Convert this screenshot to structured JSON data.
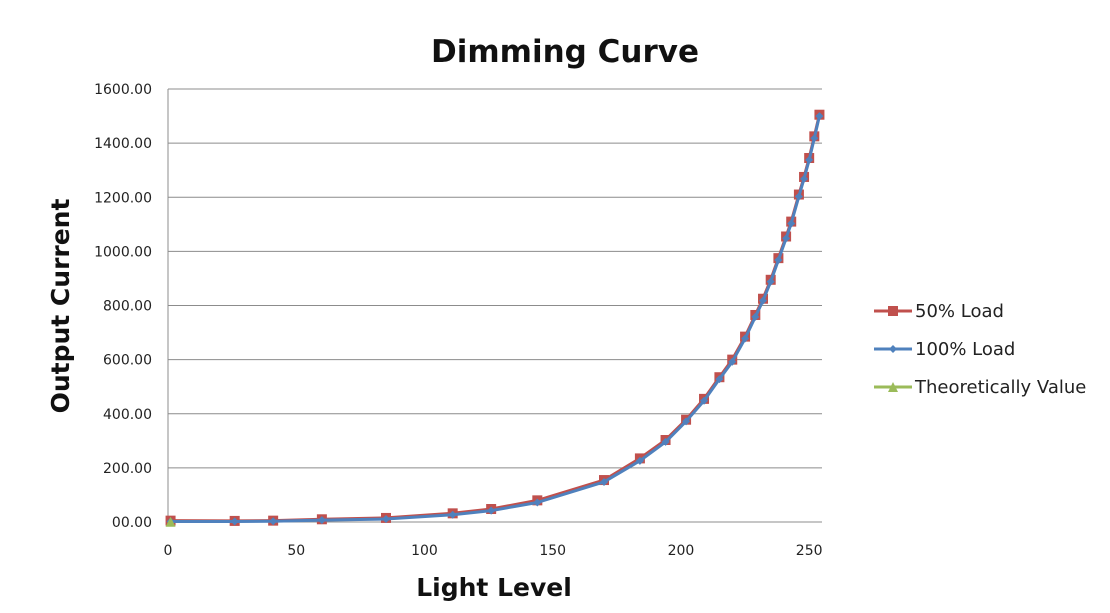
{
  "chart_data": {
    "type": "line",
    "title": "Dimming Curve",
    "xlabel": "Light Level",
    "ylabel": "Output Current",
    "xlim": [
      0,
      255
    ],
    "ylim": [
      0,
      1600
    ],
    "x_ticks": [
      "0",
      "50",
      "100",
      "150",
      "200",
      "250"
    ],
    "x_tick_values": [
      0,
      50,
      100,
      150,
      200,
      250
    ],
    "y_ticks": [
      "00.00",
      "200.00",
      "400.00",
      "600.00",
      "800.00",
      "1000.00",
      "1200.00",
      "1400.00",
      "1600.00"
    ],
    "y_tick_values": [
      0,
      200,
      400,
      600,
      800,
      1000,
      1200,
      1400,
      1600
    ],
    "grid": "horizontal",
    "legend": "right",
    "series": [
      {
        "name": "50% Load",
        "color": "#c0504d",
        "marker": "square",
        "points": [
          [
            1,
            5
          ],
          [
            26,
            4
          ],
          [
            41,
            5
          ],
          [
            60,
            10
          ],
          [
            85,
            15
          ],
          [
            111,
            32
          ],
          [
            126,
            48
          ],
          [
            144,
            80
          ],
          [
            170,
            155
          ],
          [
            184,
            235
          ],
          [
            194,
            303
          ],
          [
            202,
            378
          ],
          [
            209,
            455
          ],
          [
            215,
            535
          ],
          [
            220,
            600
          ],
          [
            225,
            685
          ],
          [
            229,
            765
          ],
          [
            232,
            825
          ],
          [
            235,
            895
          ],
          [
            238,
            975
          ],
          [
            241,
            1055
          ],
          [
            243,
            1110
          ],
          [
            246,
            1210
          ],
          [
            248,
            1275
          ],
          [
            250,
            1345
          ],
          [
            252,
            1425
          ],
          [
            254,
            1505
          ]
        ]
      },
      {
        "name": "100% Load",
        "color": "#4f81bd",
        "marker": "diamond",
        "points": [
          [
            1,
            2
          ],
          [
            26,
            2
          ],
          [
            41,
            3
          ],
          [
            60,
            7
          ],
          [
            85,
            11
          ],
          [
            111,
            27
          ],
          [
            126,
            42
          ],
          [
            144,
            72
          ],
          [
            170,
            148
          ],
          [
            184,
            226
          ],
          [
            194,
            296
          ],
          [
            202,
            372
          ],
          [
            209,
            448
          ],
          [
            215,
            528
          ],
          [
            220,
            592
          ],
          [
            225,
            678
          ],
          [
            229,
            758
          ],
          [
            232,
            818
          ],
          [
            235,
            888
          ],
          [
            238,
            968
          ],
          [
            241,
            1048
          ],
          [
            243,
            1103
          ],
          [
            246,
            1203
          ],
          [
            248,
            1268
          ],
          [
            250,
            1338
          ],
          [
            252,
            1418
          ],
          [
            254,
            1500
          ]
        ]
      },
      {
        "name": "Theoretically Value",
        "color": "#9bbb59",
        "marker": "triangle",
        "points": [
          [
            1,
            1
          ]
        ]
      }
    ]
  }
}
